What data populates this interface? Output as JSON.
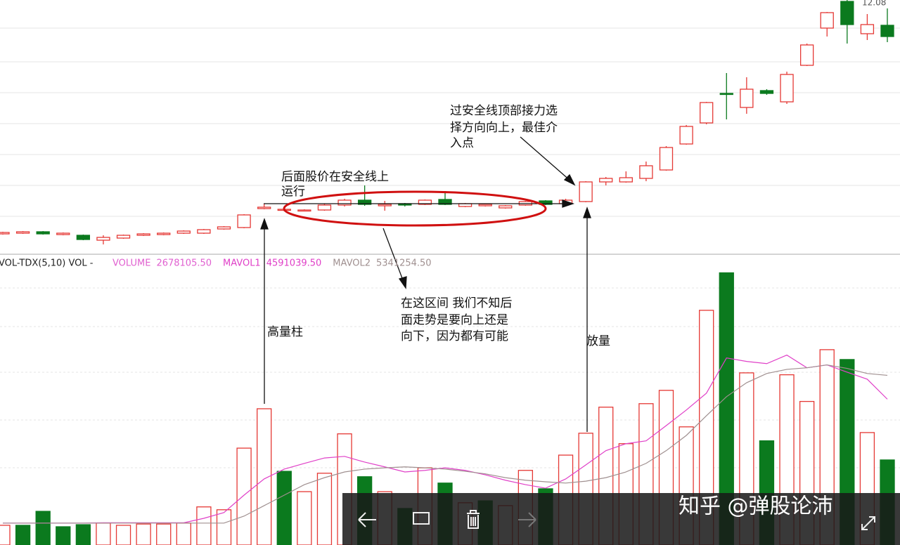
{
  "chart_data": [
    {
      "type": "candlestick",
      "open": [
        5.64,
        5.66,
        5.7,
        5.62,
        5.6,
        5.46,
        5.52,
        5.6,
        5.62,
        5.66,
        5.66,
        5.78,
        5.82,
        6.36,
        6.32,
        6.3,
        6.32,
        6.46,
        6.6,
        6.44,
        6.5,
        6.48,
        6.62,
        6.42,
        6.44,
        6.38,
        6.46,
        6.58,
        6.5,
        6.56,
        7.12,
        7.12,
        7.22,
        7.46,
        8.2,
        8.8,
        9.64,
        9.24,
        9.72,
        9.4,
        10.44,
        11.5,
        12.26,
        11.34,
        11.58
      ],
      "close": [
        5.68,
        5.7,
        5.64,
        5.66,
        5.48,
        5.54,
        5.6,
        5.64,
        5.66,
        5.72,
        5.76,
        5.84,
        6.18,
        6.4,
        6.34,
        6.32,
        6.46,
        6.6,
        6.48,
        6.48,
        6.46,
        6.6,
        6.48,
        6.5,
        6.48,
        6.44,
        6.56,
        6.48,
        6.6,
        7.12,
        7.22,
        7.24,
        7.58,
        8.1,
        8.7,
        9.38,
        9.62,
        9.76,
        9.64,
        10.18,
        11.02,
        11.94,
        11.6,
        11.6,
        11.26
      ],
      "high": [
        5.7,
        5.72,
        5.72,
        5.68,
        5.62,
        5.6,
        5.62,
        5.66,
        5.68,
        5.74,
        5.78,
        5.86,
        6.2,
        6.5,
        6.38,
        6.34,
        6.5,
        6.64,
        7.02,
        6.58,
        6.52,
        6.62,
        6.86,
        6.52,
        6.5,
        6.46,
        6.58,
        6.6,
        6.64,
        7.14,
        7.26,
        7.42,
        7.7,
        8.14,
        8.74,
        9.4,
        10.22,
        10.1,
        9.76,
        10.26,
        11.06,
        11.96,
        12.3,
        11.9,
        12.06
      ],
      "low": [
        5.62,
        5.64,
        5.62,
        5.6,
        5.46,
        5.34,
        5.5,
        5.58,
        5.6,
        5.64,
        5.64,
        5.76,
        5.8,
        6.34,
        6.28,
        6.28,
        6.3,
        6.42,
        6.44,
        6.3,
        6.42,
        6.46,
        6.46,
        6.4,
        6.42,
        6.36,
        6.44,
        6.46,
        6.48,
        6.54,
        7.02,
        7.1,
        7.14,
        7.44,
        8.18,
        8.76,
        8.9,
        9.06,
        9.6,
        9.34,
        10.42,
        11.26,
        11.06,
        11.16,
        11.1
      ],
      "ylim": [
        5.1,
        12.3
      ],
      "up_color": "#e53935",
      "down_color": "#0b7a1e",
      "price_label": "12.08",
      "annotations": {
        "safe_line": [
          "后面股价在安全线上",
          "运行"
        ],
        "entry": [
          "过安全线顶部接力选",
          "择方向向上，最佳介",
          "入点"
        ]
      }
    },
    {
      "type": "bar",
      "indicator": "VOL-TDX(5,10)  VOL -",
      "ylim": [
        0,
        9000000
      ],
      "colors": [
        "#e53935",
        "#0b7a1e",
        "#0b7a1e",
        "#0b7a1e",
        "#0b7a1e",
        "#e53935",
        "#e53935",
        "#e53935",
        "#e53935",
        "#e53935",
        "#e53935",
        "#e53935",
        "#e53935",
        "#e53935",
        "#0b7a1e",
        "#e53935",
        "#e53935",
        "#e53935",
        "#0b7a1e",
        "#e53935",
        "#0b7a1e",
        "#e53935",
        "#0b7a1e",
        "#e53935",
        "#0b7a1e",
        "#e53935",
        "#e53935",
        "#0b7a1e",
        "#e53935",
        "#e53935",
        "#e53935",
        "#e53935",
        "#e53935",
        "#e53935",
        "#e53935",
        "#e53935",
        "#0b7a1e",
        "#e53935",
        "#0b7a1e",
        "#e53935",
        "#e53935",
        "#e53935",
        "#0b7a1e",
        "#e53935",
        "#0b7a1e"
      ],
      "series": [
        {
          "name": "VOLUME",
          "color": "#e060d0",
          "last_label": "2678105.50",
          "values": [
            620000,
            620000,
            1060000,
            575000,
            640000,
            690000,
            620000,
            660000,
            660000,
            690000,
            1200000,
            1110000,
            3050000,
            4290000,
            2320000,
            1680000,
            2260000,
            3500000,
            2150000,
            1680000,
            1150000,
            2430000,
            1950000,
            1330000,
            1390000,
            1240000,
            2350000,
            1770000,
            2830000,
            3520000,
            4340000,
            3190000,
            4450000,
            4870000,
            3720000,
            7390000,
            8570000,
            5420000,
            3280000,
            5360000,
            4520000,
            6150000,
            5840000,
            3540000,
            2678105.5
          ]
        },
        {
          "name": "MAVOL1",
          "color": "#e040c8",
          "last_label": "4591039.50",
          "values": [
            690000,
            690000,
            690000,
            690000,
            690000,
            700000,
            700000,
            700000,
            700000,
            700000,
            840000,
            1020000,
            1570000,
            2080000,
            2390000,
            2570000,
            2740000,
            2790000,
            2610000,
            2460000,
            2300000,
            2350000,
            2430000,
            2350000,
            2210000,
            2040000,
            1900000,
            1790000,
            2080000,
            2520000,
            2970000,
            3190000,
            3280000,
            3760000,
            4250000,
            4780000,
            5890000,
            5780000,
            5710000,
            5980000,
            5580000,
            5670000,
            5440000,
            5220000,
            4591039.5
          ]
        },
        {
          "name": "MAVOL2",
          "color": "#a09090",
          "last_label": "5341254.50",
          "values": [
            690000,
            690000,
            690000,
            690000,
            690000,
            690000,
            690000,
            690000,
            690000,
            690000,
            690000,
            690000,
            910000,
            1240000,
            1570000,
            1900000,
            2120000,
            2300000,
            2390000,
            2430000,
            2460000,
            2430000,
            2390000,
            2320000,
            2240000,
            2120000,
            2040000,
            1990000,
            1950000,
            2010000,
            2120000,
            2300000,
            2570000,
            2970000,
            3450000,
            4070000,
            4670000,
            5110000,
            5400000,
            5530000,
            5580000,
            5670000,
            5560000,
            5400000,
            5341254.5
          ]
        }
      ],
      "annotations": {
        "high_volume": "高量柱",
        "volume_up": "放量",
        "range_note": [
          "在这区间 我们不知后",
          "面走势是要向上还是",
          "向下，因为都有可能"
        ]
      }
    }
  ],
  "overlay": {
    "watermark": "知乎 @弹股论沛"
  }
}
